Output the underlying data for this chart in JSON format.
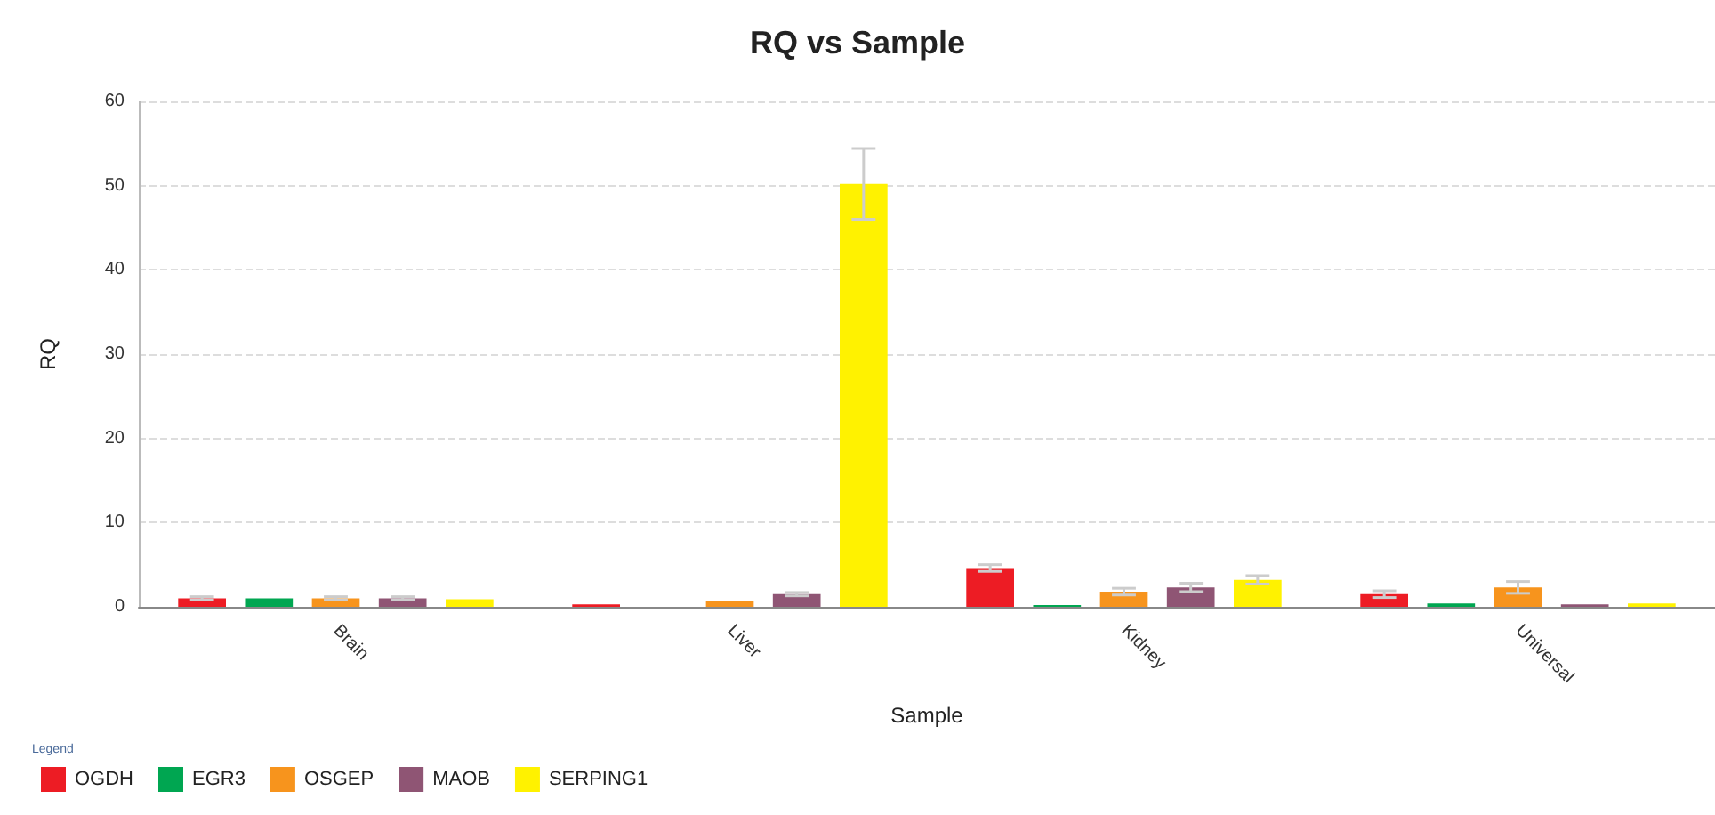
{
  "chart_data": {
    "type": "bar",
    "title": "RQ vs Sample",
    "xlabel": "Sample",
    "ylabel": "RQ",
    "legend_title": "Legend",
    "categories": [
      "Brain",
      "Liver",
      "Kidney",
      "Universal"
    ],
    "series": [
      {
        "name": "OGDH",
        "color": "#ed1c24",
        "values": [
          1.0,
          0.3,
          4.6,
          1.5
        ],
        "errors": [
          0.2,
          null,
          0.4,
          0.4
        ]
      },
      {
        "name": "EGR3",
        "color": "#00a651",
        "values": [
          1.0,
          null,
          0.2,
          0.4
        ],
        "errors": [
          null,
          null,
          null,
          null
        ]
      },
      {
        "name": "OSGEP",
        "color": "#f7941d",
        "values": [
          1.0,
          0.7,
          1.8,
          2.3
        ],
        "errors": [
          0.2,
          null,
          0.4,
          0.7
        ]
      },
      {
        "name": "MAOB",
        "color": "#8f5574",
        "values": [
          1.0,
          1.5,
          2.3,
          0.3
        ],
        "errors": [
          0.2,
          0.2,
          0.5,
          null
        ]
      },
      {
        "name": "SERPING1",
        "color": "#fff200",
        "values": [
          0.9,
          50.2,
          3.2,
          0.4
        ],
        "errors": [
          null,
          4.2,
          0.5,
          null
        ]
      }
    ],
    "ylim": [
      0,
      60
    ],
    "yticks": [
      0,
      10,
      20,
      30,
      40,
      50,
      60
    ],
    "grid": "y",
    "legend": "bottom left"
  }
}
